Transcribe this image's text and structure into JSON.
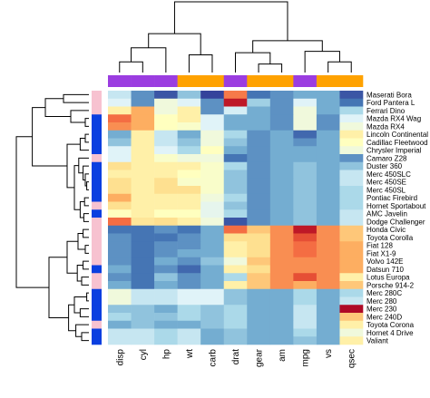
{
  "chart_data": {
    "type": "heatmap",
    "title": "",
    "xlabel": "",
    "ylabel": "",
    "columns": [
      "disp",
      "cyl",
      "hp",
      "wt",
      "carb",
      "drat",
      "gear",
      "am",
      "mpg",
      "vs",
      "qsec"
    ],
    "rows": [
      "Maserati Bora",
      "Ford Pantera L",
      "Ferrari Dino",
      "Mazda RX4 Wag",
      "Mazda RX4",
      "Lincoln Continental",
      "Cadillac Fleetwood",
      "Chrysler Imperial",
      "Camaro Z28",
      "Duster 360",
      "Merc 450SLC",
      "Merc 450SE",
      "Merc 450SL",
      "Pontiac Firebird",
      "Hornet Sportabout",
      "AMC Javelin",
      "Dodge Challenger",
      "Honda Civic",
      "Toyota Corolla",
      "Fiat 128",
      "Fiat X1-9",
      "Volvo 142E",
      "Datsun 710",
      "Lotus Europa",
      "Porsche 914-2",
      "Merc 280C",
      "Merc 280",
      "Merc 230",
      "Merc 240D",
      "Toyota Corona",
      "Hornet 4 Drive",
      "Valiant"
    ],
    "values": [
      [
        0.35,
        0.15,
        0.05,
        0.25,
        0.02,
        0.78,
        0.1,
        0.15,
        0.2,
        0.2,
        0.05
      ],
      [
        0.4,
        0.15,
        0.45,
        0.4,
        0.15,
        0.95,
        0.28,
        0.15,
        0.4,
        0.2,
        0.1
      ],
      [
        0.55,
        0.7,
        0.45,
        0.55,
        0.15,
        0.38,
        0.2,
        0.15,
        0.45,
        0.2,
        0.3
      ],
      [
        0.8,
        0.7,
        0.5,
        0.55,
        0.4,
        0.2,
        0.2,
        0.15,
        0.45,
        0.15,
        0.4
      ],
      [
        0.75,
        0.7,
        0.5,
        0.48,
        0.4,
        0.2,
        0.2,
        0.15,
        0.45,
        0.15,
        0.45
      ],
      [
        0.2,
        0.55,
        0.35,
        0.2,
        0.45,
        0.3,
        0.15,
        0.2,
        0.08,
        0.2,
        0.55
      ],
      [
        0.25,
        0.55,
        0.35,
        0.25,
        0.45,
        0.25,
        0.15,
        0.2,
        0.15,
        0.2,
        0.5
      ],
      [
        0.4,
        0.55,
        0.4,
        0.3,
        0.5,
        0.2,
        0.15,
        0.2,
        0.2,
        0.2,
        0.45
      ],
      [
        0.4,
        0.55,
        0.48,
        0.45,
        0.45,
        0.1,
        0.15,
        0.2,
        0.2,
        0.2,
        0.15
      ],
      [
        0.6,
        0.55,
        0.55,
        0.55,
        0.48,
        0.3,
        0.15,
        0.2,
        0.25,
        0.2,
        0.25
      ],
      [
        0.55,
        0.55,
        0.55,
        0.5,
        0.48,
        0.25,
        0.15,
        0.2,
        0.25,
        0.2,
        0.35
      ],
      [
        0.6,
        0.55,
        0.6,
        0.48,
        0.48,
        0.25,
        0.15,
        0.2,
        0.25,
        0.2,
        0.35
      ],
      [
        0.6,
        0.55,
        0.6,
        0.6,
        0.48,
        0.25,
        0.15,
        0.2,
        0.25,
        0.2,
        0.3
      ],
      [
        0.7,
        0.55,
        0.55,
        0.55,
        0.45,
        0.3,
        0.15,
        0.2,
        0.25,
        0.2,
        0.3
      ],
      [
        0.6,
        0.55,
        0.55,
        0.55,
        0.42,
        0.25,
        0.15,
        0.2,
        0.25,
        0.2,
        0.3
      ],
      [
        0.5,
        0.55,
        0.5,
        0.5,
        0.42,
        0.3,
        0.15,
        0.2,
        0.25,
        0.2,
        0.35
      ],
      [
        0.8,
        0.58,
        0.6,
        0.55,
        0.45,
        0.05,
        0.15,
        0.2,
        0.25,
        0.2,
        0.35
      ],
      [
        0.1,
        0.1,
        0.15,
        0.1,
        0.2,
        0.8,
        0.65,
        0.75,
        0.95,
        0.75,
        0.65
      ],
      [
        0.15,
        0.1,
        0.1,
        0.15,
        0.2,
        0.6,
        0.6,
        0.75,
        0.85,
        0.75,
        0.65
      ],
      [
        0.15,
        0.1,
        0.15,
        0.15,
        0.2,
        0.55,
        0.6,
        0.75,
        0.8,
        0.75,
        0.7
      ],
      [
        0.15,
        0.1,
        0.15,
        0.2,
        0.2,
        0.55,
        0.6,
        0.75,
        0.8,
        0.75,
        0.7
      ],
      [
        0.15,
        0.1,
        0.2,
        0.15,
        0.25,
        0.45,
        0.65,
        0.75,
        0.75,
        0.75,
        0.7
      ],
      [
        0.2,
        0.1,
        0.15,
        0.08,
        0.2,
        0.55,
        0.6,
        0.75,
        0.75,
        0.75,
        0.7
      ],
      [
        0.15,
        0.1,
        0.25,
        0.15,
        0.2,
        0.3,
        0.65,
        0.75,
        0.85,
        0.75,
        0.55
      ],
      [
        0.2,
        0.1,
        0.2,
        0.15,
        0.2,
        0.55,
        0.65,
        0.75,
        0.7,
        0.75,
        0.65
      ],
      [
        0.45,
        0.35,
        0.35,
        0.4,
        0.4,
        0.25,
        0.2,
        0.2,
        0.3,
        0.2,
        0.3
      ],
      [
        0.45,
        0.35,
        0.35,
        0.4,
        0.4,
        0.25,
        0.2,
        0.2,
        0.3,
        0.2,
        0.35
      ],
      [
        0.25,
        0.25,
        0.2,
        0.3,
        0.25,
        0.3,
        0.2,
        0.2,
        0.35,
        0.2,
        0.98
      ],
      [
        0.3,
        0.25,
        0.25,
        0.3,
        0.25,
        0.3,
        0.2,
        0.2,
        0.35,
        0.2,
        0.65
      ],
      [
        0.2,
        0.25,
        0.2,
        0.2,
        0.25,
        0.3,
        0.2,
        0.2,
        0.35,
        0.2,
        0.55
      ],
      [
        0.35,
        0.35,
        0.3,
        0.35,
        0.2,
        0.25,
        0.2,
        0.2,
        0.3,
        0.2,
        0.45
      ],
      [
        0.35,
        0.35,
        0.3,
        0.35,
        0.2,
        0.25,
        0.2,
        0.2,
        0.25,
        0.2,
        0.55
      ]
    ],
    "column_groups": [
      "purple",
      "purple",
      "purple",
      "orange",
      "orange",
      "purple",
      "orange",
      "orange",
      "purple",
      "orange",
      "orange"
    ],
    "row_groups": [
      "pink",
      "pink",
      "pink",
      "blue",
      "blue",
      "blue",
      "blue",
      "blue",
      "pink",
      "blue",
      "blue",
      "blue",
      "blue",
      "blue",
      "pink",
      "blue",
      "pink",
      "pink",
      "pink",
      "pink",
      "pink",
      "pink",
      "blue",
      "pink",
      "pink",
      "blue",
      "blue",
      "blue",
      "blue",
      "pink",
      "blue",
      "blue"
    ],
    "group_colors": {
      "purple": "#9b3de0",
      "orange": "#ffa200",
      "pink": "#f7c2d0",
      "blue": "#0a3fe0"
    },
    "scale_colors": [
      "#313695",
      "#4575b4",
      "#74add1",
      "#abd9e9",
      "#e0f3f8",
      "#ffffbf",
      "#fee090",
      "#fdae61",
      "#f46d43",
      "#d73027",
      "#a50026"
    ],
    "grid": false,
    "legend": "none"
  }
}
